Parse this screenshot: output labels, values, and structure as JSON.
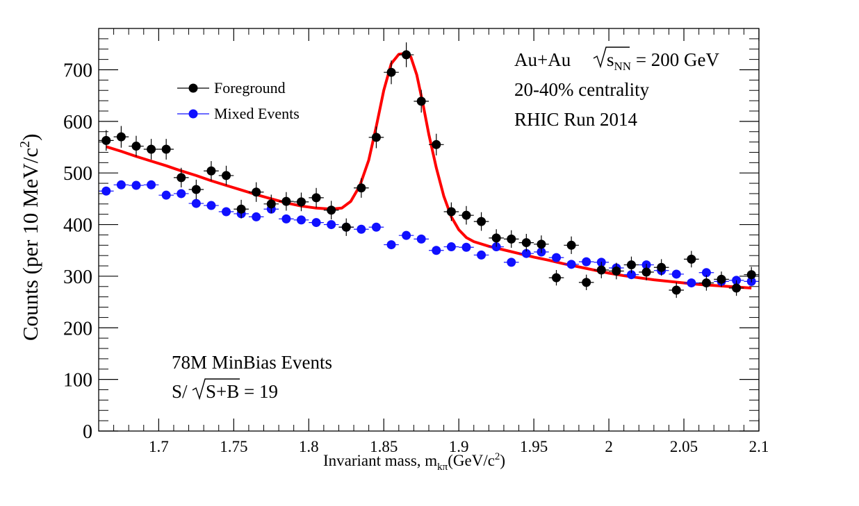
{
  "chart_data": {
    "type": "scatter",
    "xlabel": {
      "main": "Invariant mass, m",
      "sub": "kπ",
      "unit_open": "(GeV/c",
      "sup": "2",
      "unit_close": ")"
    },
    "ylabel": {
      "main": "Counts (per 10 MeV/c",
      "sup": "2",
      "close": ")"
    },
    "xlim": [
      1.66,
      2.1
    ],
    "ylim": [
      0,
      780
    ],
    "xticks": [
      {
        "value": 1.7,
        "label": "1.7"
      },
      {
        "value": 1.75,
        "label": "1.75"
      },
      {
        "value": 1.8,
        "label": "1.8"
      },
      {
        "value": 1.85,
        "label": "1.85"
      },
      {
        "value": 1.9,
        "label": "1.9"
      },
      {
        "value": 1.95,
        "label": "1.95"
      },
      {
        "value": 2.0,
        "label": "2"
      },
      {
        "value": 2.05,
        "label": "2.05"
      },
      {
        "value": 2.1,
        "label": "2.1"
      }
    ],
    "yticks": [
      {
        "value": 0,
        "label": "0"
      },
      {
        "value": 100,
        "label": "100"
      },
      {
        "value": 200,
        "label": "200"
      },
      {
        "value": 300,
        "label": "300"
      },
      {
        "value": 400,
        "label": "400"
      },
      {
        "value": 500,
        "label": "500"
      },
      {
        "value": 600,
        "label": "600"
      },
      {
        "value": 700,
        "label": "700"
      }
    ],
    "legend": {
      "placement": "top-left",
      "entries": [
        {
          "label": "Foreground",
          "color": "#000000"
        },
        {
          "label": "Mixed Events",
          "color": "#1010ff"
        }
      ]
    },
    "annotations_top_right": {
      "line1_pre": "Au+Au ",
      "line1_s": "s",
      "line1_sub": "NN",
      "line1_post": " = 200 GeV",
      "line2": "20-40% centrality",
      "line3": "RHIC Run 2014"
    },
    "annotations_bottom_left": {
      "line1": "78M MinBias Events",
      "line2_pre": "S/",
      "line2_rad": "S+B",
      "line2_post": " = 19"
    },
    "series": [
      {
        "name": "Foreground",
        "color": "#000000",
        "x": [
          1.665,
          1.675,
          1.685,
          1.695,
          1.705,
          1.715,
          1.725,
          1.735,
          1.745,
          1.755,
          1.765,
          1.775,
          1.785,
          1.795,
          1.805,
          1.815,
          1.825,
          1.835,
          1.845,
          1.855,
          1.865,
          1.875,
          1.885,
          1.895,
          1.905,
          1.915,
          1.925,
          1.935,
          1.945,
          1.955,
          1.965,
          1.975,
          1.985,
          1.995,
          2.005,
          2.015,
          2.025,
          2.035,
          2.045,
          2.055,
          2.065,
          2.075,
          2.085,
          2.095
        ],
        "y": [
          563,
          570,
          552,
          546,
          546,
          491,
          468,
          504,
          495,
          430,
          463,
          440,
          445,
          444,
          452,
          428,
          395,
          471,
          569,
          695,
          729,
          639,
          555,
          425,
          418,
          406,
          374,
          372,
          365,
          362,
          297,
          360,
          288,
          312,
          310,
          322,
          308,
          317,
          273,
          333,
          287,
          294,
          277,
          303
        ],
        "yerr": [
          20,
          21,
          20,
          20,
          20,
          19,
          19,
          19,
          19,
          18,
          19,
          18,
          18,
          18,
          19,
          18,
          17,
          19,
          21,
          23,
          24,
          22,
          21,
          18,
          18,
          18,
          17,
          17,
          17,
          17,
          15,
          17,
          15,
          16,
          16,
          16,
          16,
          16,
          15,
          16,
          15,
          15,
          15,
          15
        ]
      },
      {
        "name": "Mixed Events",
        "color": "#1010ff",
        "x": [
          1.665,
          1.675,
          1.685,
          1.695,
          1.705,
          1.715,
          1.725,
          1.735,
          1.745,
          1.755,
          1.765,
          1.775,
          1.785,
          1.795,
          1.805,
          1.815,
          1.825,
          1.835,
          1.845,
          1.855,
          1.865,
          1.875,
          1.885,
          1.895,
          1.905,
          1.915,
          1.925,
          1.935,
          1.945,
          1.955,
          1.965,
          1.975,
          1.985,
          1.995,
          2.005,
          2.015,
          2.025,
          2.035,
          2.045,
          2.055,
          2.065,
          2.075,
          2.085,
          2.095
        ],
        "y": [
          465,
          477,
          476,
          477,
          457,
          460,
          441,
          437,
          425,
          421,
          415,
          430,
          411,
          409,
          404,
          400,
          395,
          391,
          395,
          361,
          379,
          372,
          350,
          357,
          356,
          341,
          357,
          327,
          344,
          347,
          336,
          323,
          328,
          327,
          316,
          303,
          322,
          311,
          304,
          287,
          307,
          290,
          292,
          290
        ]
      },
      {
        "name": "",
        "type": "line",
        "color": "#ff0000",
        "x": [
          1.665,
          1.675,
          1.685,
          1.695,
          1.705,
          1.715,
          1.725,
          1.735,
          1.745,
          1.755,
          1.765,
          1.775,
          1.785,
          1.795,
          1.805,
          1.815,
          1.822,
          1.828,
          1.834,
          1.84,
          1.845,
          1.85,
          1.855,
          1.86,
          1.865,
          1.868,
          1.872,
          1.876,
          1.88,
          1.885,
          1.89,
          1.895,
          1.9,
          1.905,
          1.91,
          1.92,
          1.93,
          1.94,
          1.95,
          1.96,
          1.97,
          1.98,
          1.99,
          2.0,
          2.01,
          2.02,
          2.03,
          2.04,
          2.05,
          2.06,
          2.07,
          2.08,
          2.09,
          2.095
        ],
        "y": [
          551,
          542,
          532,
          523,
          514,
          504,
          495,
          485,
          476,
          467,
          458,
          450,
          442,
          436,
          432,
          430,
          432,
          445,
          475,
          525,
          590,
          660,
          712,
          730,
          732,
          725,
          690,
          635,
          575,
          510,
          455,
          415,
          390,
          375,
          367,
          358,
          351,
          344,
          337,
          331,
          324,
          318,
          312,
          306,
          301,
          297,
          293,
          290,
          287,
          284,
          282,
          280,
          278,
          277
        ]
      }
    ]
  }
}
